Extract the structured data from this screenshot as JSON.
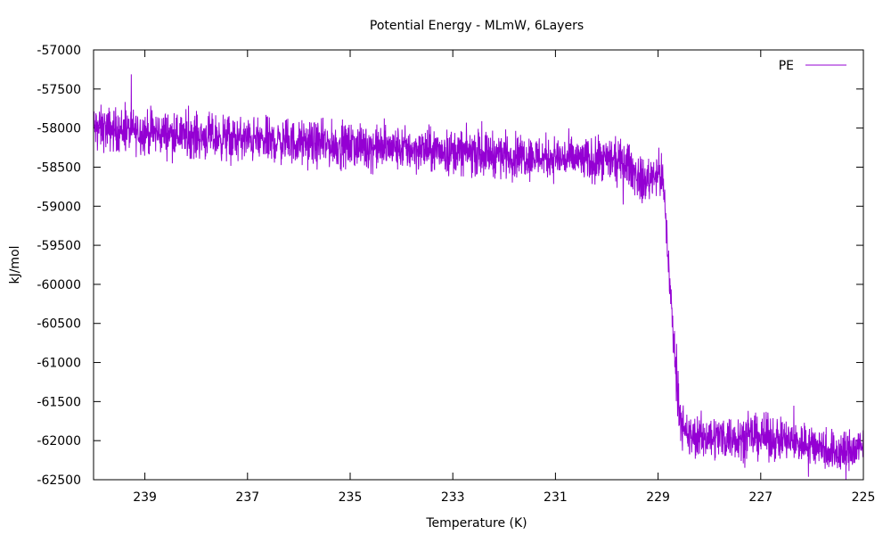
{
  "chart_data": {
    "type": "line",
    "title": "Potential Energy - MLmW, 6Layers",
    "xlabel": "Temperature (K)",
    "ylabel": "kJ/mol",
    "x_reversed": true,
    "xlim": [
      240,
      225
    ],
    "ylim": [
      -62500,
      -57000
    ],
    "x_ticks": [
      239,
      237,
      235,
      233,
      231,
      229,
      227,
      225
    ],
    "y_ticks": [
      -57000,
      -57500,
      -58000,
      -58500,
      -59000,
      -59500,
      -60000,
      -60500,
      -61000,
      -61500,
      -62000,
      -62500
    ],
    "grid": false,
    "legend_position": "top-right",
    "series": [
      {
        "name": "PE",
        "color": "#9400D3",
        "noise_band_kJ_mol": 250,
        "mean_profile": [
          {
            "x": 240.0,
            "y": -58000
          },
          {
            "x": 237.0,
            "y": -58150
          },
          {
            "x": 235.0,
            "y": -58230
          },
          {
            "x": 233.0,
            "y": -58300
          },
          {
            "x": 231.0,
            "y": -58380
          },
          {
            "x": 229.6,
            "y": -58450
          },
          {
            "x": 229.3,
            "y": -58700
          },
          {
            "x": 229.0,
            "y": -58550
          },
          {
            "x": 228.9,
            "y": -58700
          },
          {
            "x": 228.8,
            "y": -59700
          },
          {
            "x": 228.7,
            "y": -60700
          },
          {
            "x": 228.6,
            "y": -61500
          },
          {
            "x": 228.5,
            "y": -61950
          },
          {
            "x": 228.0,
            "y": -61950
          },
          {
            "x": 227.0,
            "y": -61950
          },
          {
            "x": 226.0,
            "y": -62050
          },
          {
            "x": 225.5,
            "y": -62150
          },
          {
            "x": 225.0,
            "y": -62100
          }
        ]
      }
    ]
  }
}
